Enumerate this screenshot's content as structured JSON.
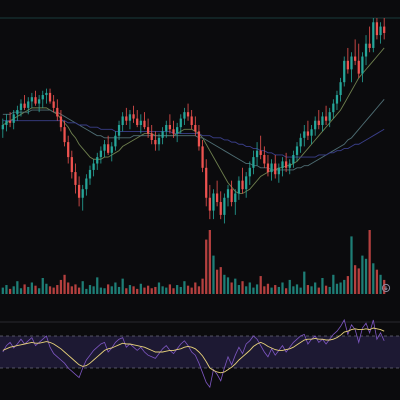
{
  "theme": {
    "background": "#0b0b0d",
    "up_color": "#26a69a",
    "down_color": "#ef5350",
    "grid_color": "#1c1c22",
    "ma_fast_color": "#6e7f4e",
    "ma_mid_color": "#4f6e74",
    "ma_slow_color": "#3a3f8a",
    "rsi_color": "#7e57c2",
    "rsi_ma_color": "#e8d27a",
    "rsi_band_color": "#1d1933",
    "rsi_level_color": "#6b6b7a",
    "price_line_color": "#1f4d4a"
  },
  "icons": {
    "goto_realtime": "arrow-down-circle-icon"
  },
  "chart_data": [
    {
      "type": "candlestick",
      "title": "",
      "xlabel": "",
      "ylabel": "",
      "grid": false,
      "ylim": [
        0,
        100
      ],
      "ohlc": [
        [
          48,
          53,
          44,
          50
        ],
        [
          50,
          55,
          47,
          52
        ],
        [
          52,
          56,
          49,
          51
        ],
        [
          51,
          57,
          48,
          55
        ],
        [
          55,
          59,
          52,
          57
        ],
        [
          57,
          62,
          54,
          60
        ],
        [
          60,
          64,
          57,
          58
        ],
        [
          58,
          63,
          55,
          61
        ],
        [
          61,
          65,
          58,
          63
        ],
        [
          63,
          66,
          59,
          60
        ],
        [
          60,
          64,
          56,
          62
        ],
        [
          62,
          66,
          58,
          64
        ],
        [
          64,
          67,
          60,
          65
        ],
        [
          65,
          67,
          60,
          61
        ],
        [
          61,
          64,
          56,
          58
        ],
        [
          58,
          62,
          52,
          54
        ],
        [
          54,
          57,
          47,
          49
        ],
        [
          49,
          52,
          40,
          42
        ],
        [
          42,
          45,
          32,
          35
        ],
        [
          35,
          38,
          25,
          28
        ],
        [
          28,
          32,
          18,
          22
        ],
        [
          22,
          26,
          12,
          16
        ],
        [
          16,
          22,
          10,
          20
        ],
        [
          20,
          27,
          17,
          25
        ],
        [
          25,
          31,
          22,
          29
        ],
        [
          29,
          34,
          26,
          32
        ],
        [
          32,
          37,
          29,
          35
        ],
        [
          35,
          40,
          32,
          38
        ],
        [
          38,
          43,
          35,
          41
        ],
        [
          41,
          45,
          36,
          37
        ],
        [
          37,
          42,
          33,
          40
        ],
        [
          40,
          47,
          38,
          45
        ],
        [
          45,
          52,
          43,
          50
        ],
        [
          50,
          56,
          47,
          54
        ],
        [
          54,
          58,
          50,
          52
        ],
        [
          52,
          57,
          48,
          55
        ],
        [
          55,
          59,
          51,
          53
        ],
        [
          53,
          57,
          49,
          50
        ],
        [
          50,
          55,
          46,
          52
        ],
        [
          52,
          56,
          48,
          49
        ],
        [
          49,
          53,
          44,
          46
        ],
        [
          46,
          50,
          41,
          43
        ],
        [
          43,
          47,
          38,
          41
        ],
        [
          41,
          46,
          38,
          44
        ],
        [
          44,
          49,
          41,
          47
        ],
        [
          47,
          52,
          44,
          50
        ],
        [
          50,
          55,
          46,
          48
        ],
        [
          48,
          52,
          44,
          46
        ],
        [
          46,
          51,
          42,
          49
        ],
        [
          49,
          55,
          46,
          53
        ],
        [
          53,
          58,
          50,
          56
        ],
        [
          56,
          60,
          52,
          54
        ],
        [
          54,
          57,
          48,
          50
        ],
        [
          50,
          54,
          45,
          47
        ],
        [
          47,
          50,
          38,
          40
        ],
        [
          40,
          43,
          28,
          30
        ],
        [
          30,
          34,
          12,
          16
        ],
        [
          16,
          22,
          6,
          10
        ],
        [
          10,
          20,
          6,
          18
        ],
        [
          18,
          24,
          12,
          14
        ],
        [
          14,
          19,
          6,
          8
        ],
        [
          8,
          18,
          4,
          16
        ],
        [
          16,
          22,
          12,
          20
        ],
        [
          20,
          24,
          12,
          14
        ],
        [
          14,
          20,
          8,
          18
        ],
        [
          18,
          26,
          15,
          24
        ],
        [
          24,
          30,
          18,
          20
        ],
        [
          20,
          28,
          16,
          26
        ],
        [
          26,
          33,
          22,
          30
        ],
        [
          30,
          38,
          27,
          35
        ],
        [
          35,
          42,
          31,
          38
        ],
        [
          38,
          45,
          34,
          36
        ],
        [
          36,
          40,
          30,
          32
        ],
        [
          32,
          36,
          26,
          28
        ],
        [
          28,
          34,
          24,
          32
        ],
        [
          32,
          36,
          25,
          27
        ],
        [
          27,
          32,
          23,
          30
        ],
        [
          30,
          35,
          26,
          33
        ],
        [
          33,
          37,
          28,
          30
        ],
        [
          30,
          34,
          27,
          32
        ],
        [
          32,
          38,
          30,
          36
        ],
        [
          36,
          42,
          33,
          40
        ],
        [
          40,
          46,
          37,
          44
        ],
        [
          44,
          50,
          40,
          47
        ],
        [
          47,
          52,
          43,
          45
        ],
        [
          45,
          50,
          41,
          48
        ],
        [
          48,
          54,
          45,
          52
        ],
        [
          52,
          57,
          48,
          50
        ],
        [
          50,
          56,
          47,
          54
        ],
        [
          54,
          59,
          50,
          52
        ],
        [
          52,
          58,
          49,
          56
        ],
        [
          56,
          62,
          53,
          60
        ],
        [
          60,
          66,
          57,
          64
        ],
        [
          64,
          72,
          61,
          70
        ],
        [
          70,
          82,
          68,
          80
        ],
        [
          80,
          86,
          74,
          76
        ],
        [
          76,
          84,
          70,
          82
        ],
        [
          82,
          90,
          78,
          80
        ],
        [
          80,
          88,
          72,
          74
        ],
        [
          74,
          84,
          70,
          82
        ],
        [
          82,
          92,
          78,
          88
        ],
        [
          88,
          96,
          84,
          86
        ],
        [
          86,
          100,
          84,
          98
        ],
        [
          98,
          100,
          90,
          92
        ],
        [
          92,
          98,
          88,
          96
        ],
        [
          96,
          100,
          90,
          93
        ]
      ],
      "moving_averages": [
        {
          "values": [
            50,
            51,
            52,
            53,
            54,
            55,
            56,
            57,
            58,
            58,
            58,
            58,
            58,
            57,
            56,
            55,
            53,
            51,
            49,
            46,
            44,
            41,
            39,
            37,
            35,
            34,
            34,
            34,
            35,
            35,
            36,
            37,
            38,
            40,
            41,
            42,
            43,
            44,
            45,
            46,
            46,
            46,
            45,
            45,
            45,
            45,
            45,
            45,
            46,
            47,
            48,
            48,
            48,
            47,
            46,
            44,
            41,
            38,
            35,
            32,
            29,
            26,
            23,
            21,
            19,
            18,
            18,
            19,
            20,
            22,
            24,
            26,
            27,
            28,
            29,
            29,
            30,
            30,
            31,
            31,
            32,
            33,
            35,
            37,
            39,
            41,
            43,
            45,
            47,
            49,
            51,
            53,
            55,
            57,
            60,
            63,
            66,
            69,
            72,
            74,
            76,
            78,
            80,
            82,
            84,
            86
          ]
        },
        {
          "values": [
            55,
            55,
            55,
            56,
            56,
            56,
            56,
            56,
            57,
            57,
            57,
            57,
            57,
            57,
            56,
            56,
            55,
            54,
            53,
            52,
            51,
            50,
            49,
            48,
            47,
            46,
            45,
            45,
            44,
            44,
            44,
            44,
            44,
            44,
            44,
            44,
            45,
            45,
            45,
            45,
            45,
            45,
            45,
            45,
            45,
            45,
            45,
            45,
            45,
            45,
            45,
            45,
            45,
            45,
            44,
            44,
            43,
            42,
            41,
            40,
            39,
            38,
            37,
            36,
            35,
            34,
            33,
            32,
            32,
            31,
            31,
            30,
            30,
            30,
            29,
            29,
            29,
            29,
            29,
            29,
            29,
            30,
            30,
            31,
            31,
            32,
            33,
            34,
            35,
            36,
            37,
            38,
            39,
            40,
            41,
            43,
            44,
            46,
            48,
            50,
            52,
            54,
            56,
            58,
            60,
            62
          ]
        },
        {
          "values": [
            52,
            52,
            52,
            52,
            52,
            52,
            52,
            52,
            52,
            52,
            52,
            52,
            52,
            52,
            52,
            52,
            52,
            52,
            51,
            51,
            51,
            50,
            50,
            50,
            49,
            49,
            49,
            48,
            48,
            48,
            48,
            47,
            47,
            47,
            47,
            47,
            47,
            47,
            47,
            47,
            47,
            47,
            47,
            47,
            47,
            47,
            47,
            46,
            46,
            46,
            46,
            46,
            46,
            46,
            46,
            45,
            45,
            45,
            44,
            44,
            44,
            43,
            43,
            42,
            42,
            41,
            41,
            40,
            40,
            39,
            39,
            38,
            38,
            37,
            37,
            36,
            36,
            36,
            35,
            35,
            35,
            35,
            35,
            35,
            35,
            35,
            35,
            36,
            36,
            36,
            37,
            37,
            38,
            38,
            39,
            39,
            40,
            41,
            41,
            42,
            43,
            44,
            45,
            46,
            47,
            48
          ]
        }
      ],
      "last_price_line": 100
    },
    {
      "type": "bar",
      "title": "",
      "xlabel": "",
      "ylabel": "",
      "ylim": [
        0,
        100
      ],
      "values": [
        10,
        14,
        8,
        12,
        20,
        9,
        15,
        11,
        18,
        13,
        9,
        25,
        16,
        12,
        10,
        14,
        22,
        30,
        18,
        12,
        15,
        10,
        20,
        8,
        14,
        12,
        26,
        10,
        9,
        15,
        12,
        18,
        11,
        24,
        9,
        14,
        12,
        8,
        16,
        10,
        13,
        9,
        11,
        18,
        12,
        10,
        15,
        9,
        14,
        11,
        20,
        13,
        10,
        18,
        12,
        24,
        85,
        100,
        60,
        38,
        42,
        30,
        26,
        18,
        24,
        14,
        20,
        12,
        18,
        10,
        15,
        28,
        12,
        16,
        10,
        14,
        11,
        18,
        9,
        22,
        12,
        15,
        10,
        35,
        14,
        12,
        18,
        10,
        25,
        13,
        11,
        30,
        16,
        18,
        22,
        28,
        90,
        45,
        40,
        60,
        55,
        100,
        48,
        38,
        30,
        22
      ]
    },
    {
      "type": "line",
      "title": "",
      "xlabel": "",
      "ylabel": "",
      "ylim": [
        0,
        100
      ],
      "levels": [
        70,
        30
      ],
      "series": [
        {
          "values": [
            50,
            58,
            62,
            55,
            60,
            66,
            60,
            64,
            68,
            58,
            62,
            66,
            70,
            56,
            48,
            44,
            40,
            36,
            30,
            26,
            22,
            18,
            30,
            40,
            46,
            52,
            56,
            60,
            62,
            50,
            55,
            62,
            66,
            68,
            56,
            60,
            56,
            52,
            56,
            50,
            46,
            44,
            42,
            48,
            54,
            58,
            52,
            48,
            54,
            60,
            64,
            58,
            50,
            46,
            36,
            24,
            12,
            6,
            28,
            22,
            14,
            30,
            44,
            34,
            46,
            56,
            48,
            60,
            64,
            70,
            66,
            58,
            50,
            44,
            54,
            46,
            52,
            58,
            50,
            56,
            62,
            66,
            70,
            72,
            60,
            66,
            70,
            62,
            66,
            60,
            66,
            72,
            76,
            82,
            90,
            72,
            84,
            78,
            62,
            80,
            86,
            74,
            90,
            66,
            74,
            64
          ]
        },
        {
          "values": [
            52,
            54,
            56,
            57,
            58,
            59,
            60,
            61,
            62,
            61,
            61,
            62,
            63,
            62,
            60,
            57,
            54,
            50,
            46,
            42,
            38,
            34,
            32,
            33,
            36,
            40,
            44,
            48,
            52,
            54,
            55,
            57,
            59,
            61,
            60,
            60,
            59,
            58,
            57,
            56,
            54,
            52,
            50,
            50,
            50,
            51,
            52,
            52,
            53,
            54,
            56,
            57,
            56,
            54,
            50,
            45,
            38,
            30,
            27,
            25,
            24,
            25,
            28,
            31,
            35,
            40,
            44,
            48,
            52,
            57,
            60,
            62,
            60,
            57,
            55,
            53,
            52,
            52,
            53,
            54,
            56,
            59,
            62,
            65,
            66,
            66,
            67,
            66,
            66,
            65,
            65,
            66,
            68,
            71,
            75,
            76,
            78,
            79,
            78,
            78,
            79,
            78,
            80,
            79,
            78,
            76
          ]
        }
      ]
    }
  ]
}
